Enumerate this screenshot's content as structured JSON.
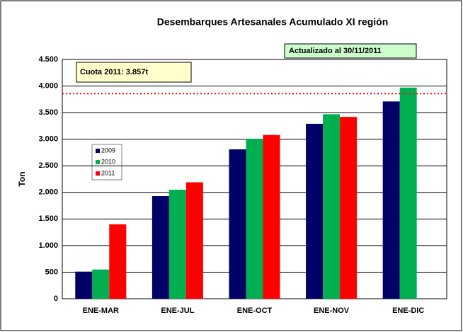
{
  "chart_data": {
    "type": "bar",
    "title": "Desembarques Artesanales Acumulado XI región",
    "ylabel": "Ton",
    "categories": [
      "ENE-MAR",
      "ENE-JUL",
      "ENE-OCT",
      "ENE-NOV",
      "ENE-DIC"
    ],
    "series": [
      {
        "name": "2009",
        "color": "#000066",
        "values": [
          510,
          1930,
          2810,
          3290,
          3710
        ]
      },
      {
        "name": "2010",
        "color": "#00b050",
        "values": [
          550,
          2050,
          3010,
          3470,
          3970
        ]
      },
      {
        "name": "2011",
        "color": "#ff0000",
        "values": [
          1400,
          2190,
          3080,
          3420,
          null
        ]
      }
    ],
    "ylim": [
      0,
      4500
    ],
    "yticks": [
      0,
      {
        "value": 500,
        "label": "500"
      },
      {
        "value": 1000,
        "label": "1.000"
      },
      {
        "value": 1500,
        "label": "1.500"
      },
      {
        "value": 2000,
        "label": "2.000"
      },
      {
        "value": 2500,
        "label": "2.500"
      },
      {
        "value": 3000,
        "label": "3.000"
      },
      {
        "value": 3500,
        "label": "3.500"
      },
      {
        "value": 4000,
        "label": "4.000"
      },
      {
        "value": 4500,
        "label": "4.500"
      }
    ],
    "grid": true,
    "reference_line": {
      "value": 3857,
      "color": "#ff0000"
    },
    "annotations": [
      "Cuota 2011: 3.857t",
      "Actualizado al 30/11/2011"
    ]
  }
}
